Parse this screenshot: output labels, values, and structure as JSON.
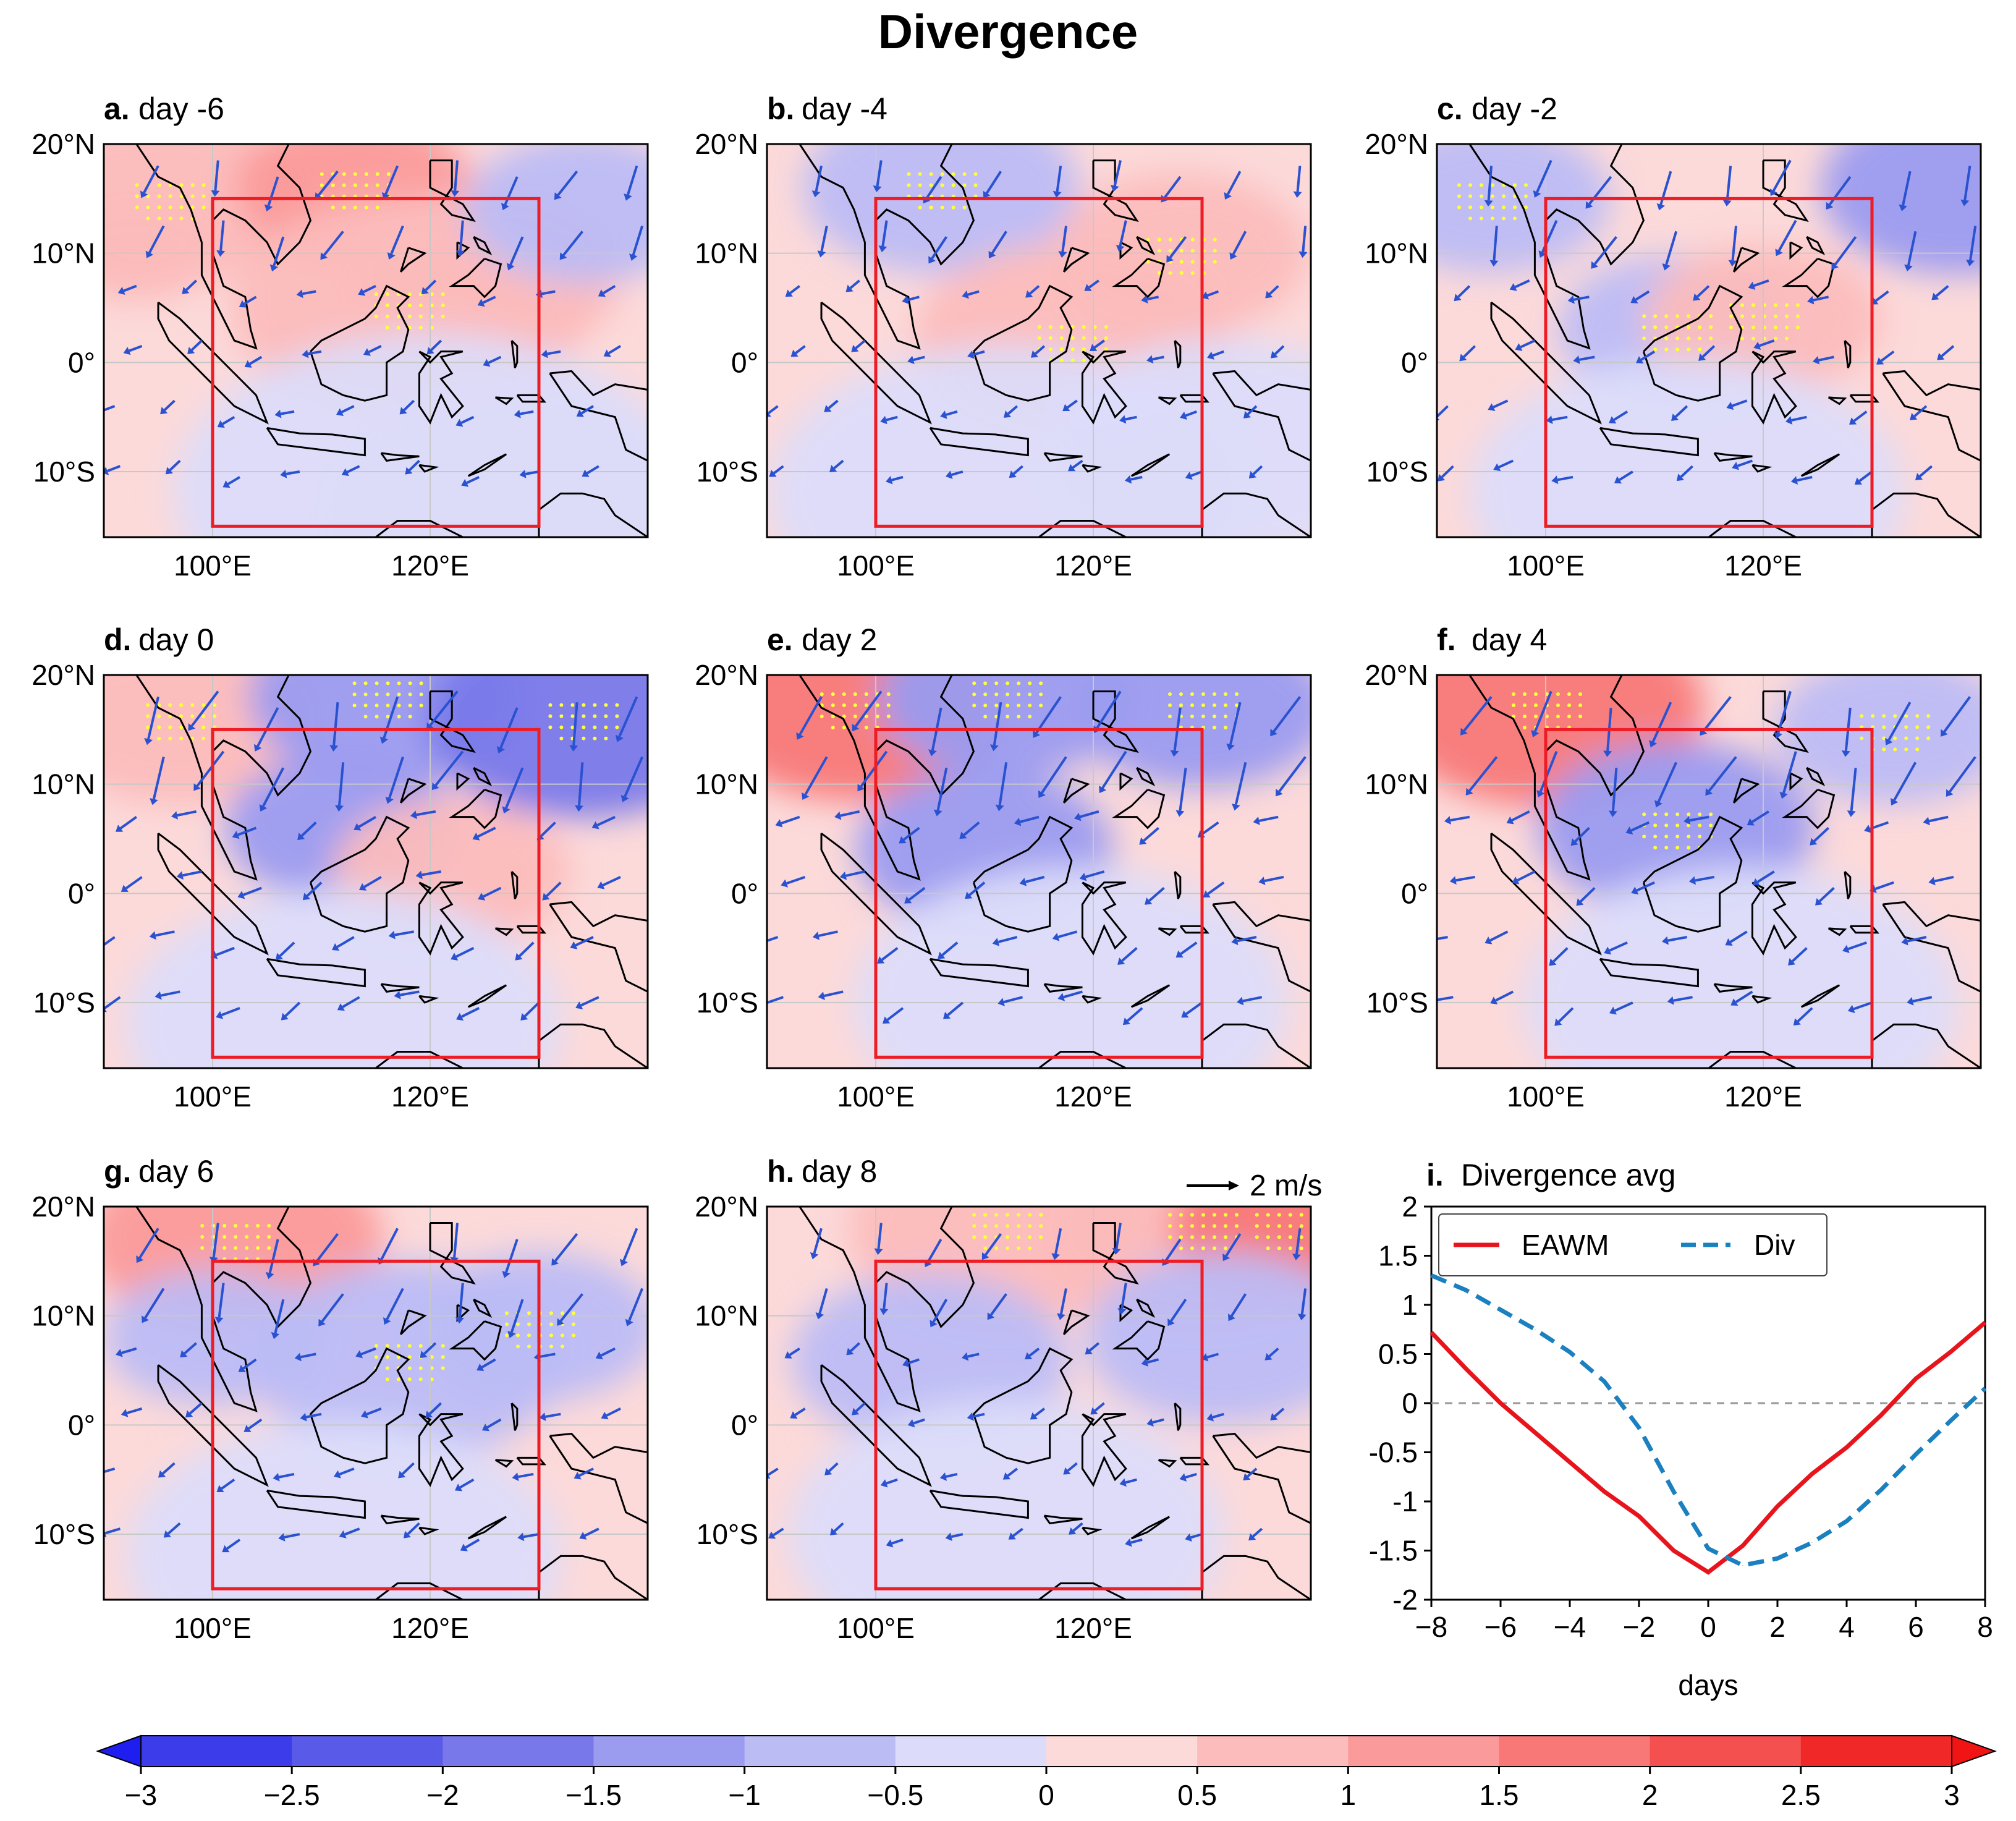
{
  "figure_title": "Divergence",
  "map_axes": {
    "lat_labels": [
      "20°N",
      "10°N",
      "0°",
      "10°S"
    ],
    "lon_labels": [
      "100°E",
      "120°E"
    ]
  },
  "panels": [
    {
      "letter": "a.",
      "day": "day -6"
    },
    {
      "letter": "b.",
      "day": "day -4"
    },
    {
      "letter": "c.",
      "day": "day -2"
    },
    {
      "letter": "d.",
      "day": "day 0"
    },
    {
      "letter": "e.",
      "day": "day 2"
    },
    {
      "letter": "f.",
      "day": "day 4"
    },
    {
      "letter": "g.",
      "day": "day 6"
    },
    {
      "letter": "h.",
      "day": "day 8"
    }
  ],
  "vector_key": {
    "label": "2 m/s"
  },
  "colors": {
    "box": "#ee1c25",
    "arrows": "#2a52d0",
    "stipple": "#ffff3c",
    "coast": "#000000",
    "eawm": "#e8141c",
    "div": "#1a80bf"
  },
  "colorbar": {
    "ticks": [
      "−3",
      "−2.5",
      "−2",
      "−1.5",
      "−1",
      "−0.5",
      "0",
      "0.5",
      "1",
      "1.5",
      "2",
      "2.5",
      "3"
    ],
    "colors": [
      "#1e1ef0",
      "#3c3ceb",
      "#5a5ae8",
      "#7878ea",
      "#9b9bf0",
      "#bcbcf5",
      "#dcdcfa",
      "#fcdada",
      "#fcbcbc",
      "#fb9a9a",
      "#f87878",
      "#f45050",
      "#f02828",
      "#f01414"
    ]
  },
  "chart_data": {
    "type": "line",
    "panel_letter": "i.",
    "title": "Divergence avg",
    "xlabel": "days",
    "ylabel": "",
    "xlim": [
      -8,
      8
    ],
    "ylim": [
      -2,
      2
    ],
    "xticks": [
      -8,
      -6,
      -4,
      -2,
      0,
      2,
      4,
      6,
      8
    ],
    "xtick_labels": [
      "−8",
      "−6",
      "−4",
      "−2",
      "0",
      "2",
      "4",
      "6",
      "8"
    ],
    "yticks": [
      2,
      1.5,
      1,
      0.5,
      0,
      -0.5,
      -1,
      -1.5,
      -2
    ],
    "ytick_labels": [
      "2",
      "1.5",
      "1",
      "0.5",
      "0",
      "-0.5",
      "-1",
      "-1.5",
      "-2"
    ],
    "zero_line": true,
    "legend_position": "top",
    "series": [
      {
        "name": "EAWM",
        "style": "solid",
        "x": [
          -8,
          -7,
          -6,
          -5,
          -4,
          -3,
          -2,
          -1,
          0,
          1,
          2,
          3,
          4,
          5,
          6,
          7,
          8
        ],
        "values": [
          0.72,
          0.35,
          0.0,
          -0.3,
          -0.6,
          -0.9,
          -1.15,
          -1.5,
          -1.72,
          -1.45,
          -1.05,
          -0.72,
          -0.45,
          -0.12,
          0.25,
          0.52,
          0.82
        ]
      },
      {
        "name": "Div",
        "style": "dashed",
        "x": [
          -8,
          -7,
          -6,
          -5,
          -4,
          -3,
          -2,
          -1,
          0,
          1,
          2,
          3,
          4,
          5,
          6,
          7,
          8
        ],
        "values": [
          1.3,
          1.15,
          0.95,
          0.75,
          0.52,
          0.22,
          -0.25,
          -0.9,
          -1.48,
          -1.65,
          -1.58,
          -1.42,
          -1.2,
          -0.88,
          -0.52,
          -0.18,
          0.15
        ]
      }
    ]
  }
}
